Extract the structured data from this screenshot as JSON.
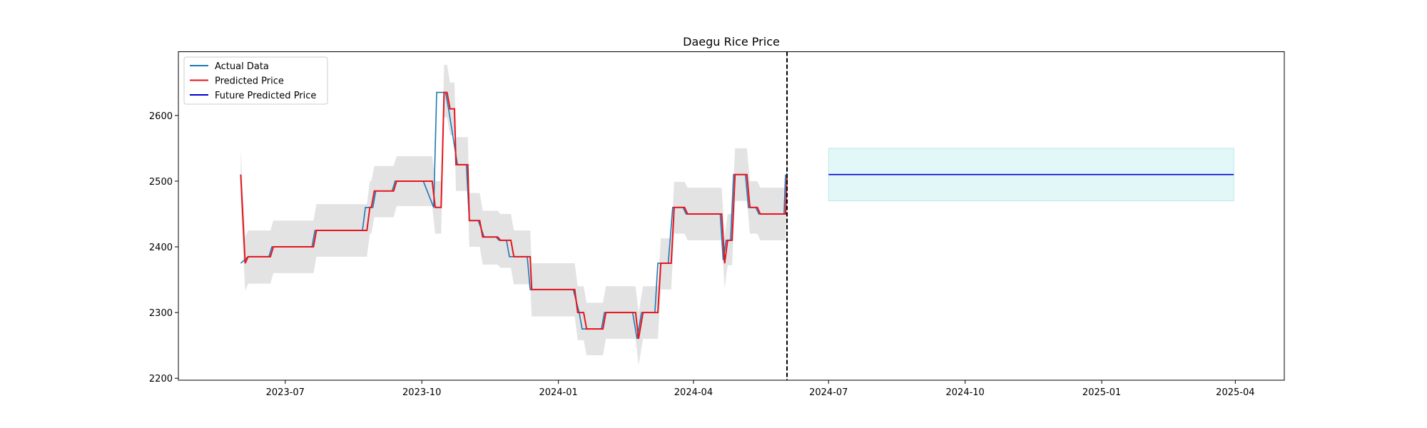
{
  "chart_data": {
    "type": "line",
    "title": "Daegu Rice Price",
    "xlabel": "",
    "ylabel": "",
    "xlim": [
      "2023-04-20",
      "2025-05-04"
    ],
    "ylim": [
      2197,
      2697
    ],
    "xticks": [
      "2023-07-01",
      "2023-10-01",
      "2024-01-01",
      "2024-04-01",
      "2024-07-01",
      "2024-10-01",
      "2025-01-01",
      "2025-04-01"
    ],
    "xtick_labels": [
      "2023-07",
      "2023-10",
      "2024-01",
      "2024-04",
      "2024-07",
      "2024-10",
      "2025-01",
      "2025-04"
    ],
    "yticks": [
      2200,
      2300,
      2400,
      2500,
      2600
    ],
    "ytick_labels": [
      "2200",
      "2300",
      "2400",
      "2500",
      "2600"
    ],
    "legend": {
      "position": "upper-left",
      "entries": [
        {
          "label": "Actual Data",
          "color": "#1f77b4"
        },
        {
          "label": "Predicted Price",
          "color": "#e8141c"
        },
        {
          "label": "Future Predicted Price",
          "color": "#0000cc"
        }
      ]
    },
    "vline": {
      "x": "2024-06-03",
      "style": "dashed",
      "color": "#000000"
    },
    "series": [
      {
        "name": "Actual Data",
        "color": "#1f77b4",
        "points": [
          [
            "2023-06-01",
            2375
          ],
          [
            "2023-06-06",
            2385
          ],
          [
            "2023-06-20",
            2385
          ],
          [
            "2023-06-22",
            2400
          ],
          [
            "2023-07-10",
            2400
          ],
          [
            "2023-07-19",
            2400
          ],
          [
            "2023-07-21",
            2425
          ],
          [
            "2023-08-22",
            2425
          ],
          [
            "2023-08-24",
            2460
          ],
          [
            "2023-08-29",
            2460
          ],
          [
            "2023-08-31",
            2485
          ],
          [
            "2023-09-11",
            2485
          ],
          [
            "2023-09-13",
            2500
          ],
          [
            "2023-10-02",
            2500
          ],
          [
            "2023-10-09",
            2460
          ],
          [
            "2023-10-11",
            2635
          ],
          [
            "2023-10-17",
            2635
          ],
          [
            "2023-10-19",
            2610
          ],
          [
            "2023-10-25",
            2525
          ],
          [
            "2023-10-31",
            2525
          ],
          [
            "2023-11-02",
            2440
          ],
          [
            "2023-11-08",
            2440
          ],
          [
            "2023-11-12",
            2415
          ],
          [
            "2023-11-20",
            2415
          ],
          [
            "2023-11-22",
            2410
          ],
          [
            "2023-11-27",
            2410
          ],
          [
            "2023-11-29",
            2385
          ],
          [
            "2023-12-04",
            2385
          ],
          [
            "2023-12-11",
            2385
          ],
          [
            "2023-12-13",
            2335
          ],
          [
            "2024-01-11",
            2335
          ],
          [
            "2024-01-15",
            2300
          ],
          [
            "2024-01-17",
            2275
          ],
          [
            "2024-01-30",
            2275
          ],
          [
            "2024-02-01",
            2300
          ],
          [
            "2024-02-20",
            2300
          ],
          [
            "2024-02-23",
            2260
          ],
          [
            "2024-02-26",
            2300
          ],
          [
            "2024-03-06",
            2300
          ],
          [
            "2024-03-08",
            2375
          ],
          [
            "2024-03-15",
            2375
          ],
          [
            "2024-03-18",
            2460
          ],
          [
            "2024-03-25",
            2460
          ],
          [
            "2024-03-27",
            2450
          ],
          [
            "2024-04-19",
            2450
          ],
          [
            "2024-04-21",
            2380
          ],
          [
            "2024-04-23",
            2410
          ],
          [
            "2024-04-26",
            2410
          ],
          [
            "2024-04-28",
            2510
          ],
          [
            "2024-05-06",
            2510
          ],
          [
            "2024-05-08",
            2460
          ],
          [
            "2024-05-13",
            2460
          ],
          [
            "2024-05-15",
            2450
          ],
          [
            "2024-05-30",
            2450
          ],
          [
            "2024-06-01",
            2450
          ],
          [
            "2024-06-02",
            2510
          ]
        ]
      },
      {
        "name": "Predicted Price",
        "color": "#e8141c",
        "points": [
          [
            "2023-06-01",
            2510
          ],
          [
            "2023-06-04",
            2375
          ],
          [
            "2023-06-06",
            2385
          ],
          [
            "2023-06-21",
            2385
          ],
          [
            "2023-06-23",
            2400
          ],
          [
            "2023-07-20",
            2400
          ],
          [
            "2023-07-22",
            2425
          ],
          [
            "2023-08-25",
            2425
          ],
          [
            "2023-08-27",
            2460
          ],
          [
            "2023-08-28",
            2460
          ],
          [
            "2023-08-30",
            2485
          ],
          [
            "2023-09-12",
            2485
          ],
          [
            "2023-09-14",
            2500
          ],
          [
            "2023-10-08",
            2500
          ],
          [
            "2023-10-10",
            2460
          ],
          [
            "2023-10-14",
            2460
          ],
          [
            "2023-10-16",
            2635
          ],
          [
            "2023-10-18",
            2635
          ],
          [
            "2023-10-20",
            2610
          ],
          [
            "2023-10-23",
            2610
          ],
          [
            "2023-10-24",
            2525
          ],
          [
            "2023-11-01",
            2525
          ],
          [
            "2023-11-02",
            2440
          ],
          [
            "2023-11-09",
            2440
          ],
          [
            "2023-11-11",
            2415
          ],
          [
            "2023-11-21",
            2415
          ],
          [
            "2023-11-23",
            2410
          ],
          [
            "2023-11-30",
            2410
          ],
          [
            "2023-12-02",
            2385
          ],
          [
            "2023-12-13",
            2385
          ],
          [
            "2023-12-14",
            2335
          ],
          [
            "2024-01-12",
            2335
          ],
          [
            "2024-01-14",
            2300
          ],
          [
            "2024-01-18",
            2300
          ],
          [
            "2024-01-20",
            2275
          ],
          [
            "2024-01-31",
            2275
          ],
          [
            "2024-02-02",
            2300
          ],
          [
            "2024-02-22",
            2300
          ],
          [
            "2024-02-24",
            2260
          ],
          [
            "2024-02-27",
            2300
          ],
          [
            "2024-03-08",
            2300
          ],
          [
            "2024-03-10",
            2375
          ],
          [
            "2024-03-17",
            2375
          ],
          [
            "2024-03-19",
            2460
          ],
          [
            "2024-03-26",
            2460
          ],
          [
            "2024-03-28",
            2450
          ],
          [
            "2024-04-20",
            2450
          ],
          [
            "2024-04-22",
            2375
          ],
          [
            "2024-04-24",
            2410
          ],
          [
            "2024-04-27",
            2410
          ],
          [
            "2024-04-29",
            2510
          ],
          [
            "2024-05-07",
            2510
          ],
          [
            "2024-05-09",
            2460
          ],
          [
            "2024-05-14",
            2460
          ],
          [
            "2024-05-16",
            2450
          ],
          [
            "2024-06-02",
            2450
          ],
          [
            "2024-06-03",
            2510
          ]
        ]
      },
      {
        "name": "Future Predicted Price",
        "color": "#0000cc",
        "points": [
          [
            "2024-07-01",
            2510
          ],
          [
            "2025-03-31",
            2510
          ]
        ]
      }
    ],
    "confidence_band": {
      "color": "#c8c8c8",
      "points": [
        [
          "2023-06-01",
          2548,
          2470
        ],
        [
          "2023-06-04",
          2415,
          2333
        ],
        [
          "2023-06-06",
          2425,
          2344
        ],
        [
          "2023-06-21",
          2425,
          2344
        ],
        [
          "2023-06-23",
          2440,
          2360
        ],
        [
          "2023-07-20",
          2440,
          2360
        ],
        [
          "2023-07-22",
          2465,
          2385
        ],
        [
          "2023-08-25",
          2465,
          2385
        ],
        [
          "2023-08-27",
          2500,
          2420
        ],
        [
          "2023-08-28",
          2500,
          2420
        ],
        [
          "2023-08-30",
          2523,
          2445
        ],
        [
          "2023-09-12",
          2523,
          2445
        ],
        [
          "2023-09-14",
          2538,
          2462
        ],
        [
          "2023-10-08",
          2538,
          2462
        ],
        [
          "2023-10-10",
          2500,
          2420
        ],
        [
          "2023-10-14",
          2500,
          2420
        ],
        [
          "2023-10-16",
          2677,
          2597
        ],
        [
          "2023-10-18",
          2677,
          2597
        ],
        [
          "2023-10-20",
          2650,
          2570
        ],
        [
          "2023-10-23",
          2650,
          2570
        ],
        [
          "2023-10-24",
          2567,
          2485
        ],
        [
          "2023-11-01",
          2567,
          2485
        ],
        [
          "2023-11-02",
          2482,
          2400
        ],
        [
          "2023-11-09",
          2482,
          2400
        ],
        [
          "2023-11-11",
          2455,
          2373
        ],
        [
          "2023-11-21",
          2455,
          2373
        ],
        [
          "2023-11-23",
          2450,
          2368
        ],
        [
          "2023-11-30",
          2450,
          2368
        ],
        [
          "2023-12-02",
          2425,
          2343
        ],
        [
          "2023-12-13",
          2425,
          2343
        ],
        [
          "2023-12-14",
          2375,
          2294
        ],
        [
          "2024-01-12",
          2375,
          2294
        ],
        [
          "2024-01-14",
          2340,
          2258
        ],
        [
          "2024-01-18",
          2340,
          2258
        ],
        [
          "2024-01-20",
          2315,
          2235
        ],
        [
          "2024-01-31",
          2315,
          2235
        ],
        [
          "2024-02-02",
          2340,
          2260
        ],
        [
          "2024-02-22",
          2340,
          2260
        ],
        [
          "2024-02-24",
          2300,
          2220
        ],
        [
          "2024-02-27",
          2340,
          2260
        ],
        [
          "2024-03-08",
          2340,
          2260
        ],
        [
          "2024-03-10",
          2413,
          2335
        ],
        [
          "2024-03-17",
          2413,
          2335
        ],
        [
          "2024-03-19",
          2499,
          2420
        ],
        [
          "2024-03-26",
          2499,
          2420
        ],
        [
          "2024-03-28",
          2490,
          2410
        ],
        [
          "2024-04-20",
          2490,
          2410
        ],
        [
          "2024-04-22",
          2415,
          2337
        ],
        [
          "2024-04-24",
          2450,
          2372
        ],
        [
          "2024-04-27",
          2450,
          2372
        ],
        [
          "2024-04-29",
          2550,
          2470
        ],
        [
          "2024-05-07",
          2550,
          2470
        ],
        [
          "2024-05-09",
          2500,
          2420
        ],
        [
          "2024-05-14",
          2500,
          2420
        ],
        [
          "2024-05-16",
          2490,
          2410
        ],
        [
          "2024-06-02",
          2490,
          2410
        ],
        [
          "2024-06-03",
          2550,
          2470
        ]
      ]
    },
    "future_band": {
      "color": "#bfeeee",
      "x": [
        "2024-07-01",
        "2025-03-31"
      ],
      "upper": 2550,
      "lower": 2470
    }
  }
}
